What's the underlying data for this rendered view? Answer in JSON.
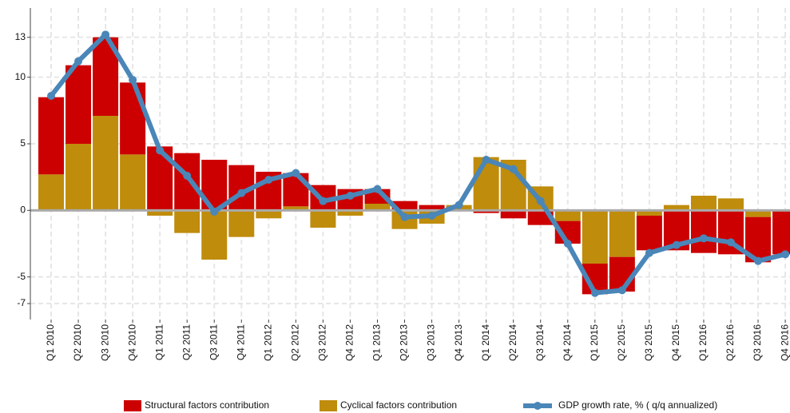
{
  "chart_data": {
    "type": "bar_line",
    "categories": [
      "Q1 2010",
      "Q2 2010",
      "Q3 2010",
      "Q4 2010",
      "Q1 2011",
      "Q2 2011",
      "Q3 2011",
      "Q4 2011",
      "Q1 2012",
      "Q2 2012",
      "Q3 2012",
      "Q4 2012",
      "Q1 2013",
      "Q2 2013",
      "Q3 2013",
      "Q4 2013",
      "Q1 2014",
      "Q2 2014",
      "Q3 2014",
      "Q4 2014",
      "Q1 2015",
      "Q2 2015",
      "Q3 2015",
      "Q4 2015",
      "Q1 2016",
      "Q2 2016",
      "Q3 2016",
      "Q4 2016"
    ],
    "series": [
      {
        "name": "Structural factors contribution",
        "type": "bar",
        "color": "#cc0000",
        "values": [
          5.8,
          5.9,
          5.9,
          5.4,
          4.8,
          4.3,
          3.8,
          3.4,
          2.9,
          2.5,
          1.9,
          1.6,
          1.1,
          0.7,
          0.4,
          0,
          -0.2,
          -0.6,
          -1.1,
          -1.7,
          -2.3,
          -2.6,
          -2.6,
          -3.0,
          -3.2,
          -3.3,
          -3.4,
          -3.3
        ]
      },
      {
        "name": "Cyclical factors contribution",
        "type": "bar",
        "color": "#bf8c0c",
        "values": [
          2.7,
          5.0,
          7.1,
          4.2,
          -0.4,
          -1.7,
          -3.7,
          -2.0,
          -0.6,
          0.3,
          -1.3,
          -0.4,
          0.5,
          -1.4,
          -1.0,
          0.4,
          4.0,
          3.8,
          1.8,
          -0.8,
          -4.0,
          -3.5,
          -0.4,
          0.4,
          1.1,
          0.9,
          -0.5,
          0
        ]
      },
      {
        "name": "GDP growth rate, % ( q/q annualized)",
        "type": "line",
        "color": "#4a86b8",
        "values": [
          8.6,
          11.2,
          13.2,
          9.8,
          4.5,
          2.6,
          -0.1,
          1.3,
          2.3,
          2.8,
          0.7,
          1.1,
          1.6,
          -0.5,
          -0.4,
          0.4,
          3.8,
          3.1,
          0.7,
          -2.5,
          -6.2,
          -6.0,
          -3.2,
          -2.6,
          -2.1,
          -2.4,
          -3.8,
          -3.3
        ]
      }
    ],
    "ylim": [
      -8.2,
      15.2
    ],
    "yticks": [
      13,
      10,
      5,
      0,
      -5,
      -7
    ],
    "grid": true
  }
}
